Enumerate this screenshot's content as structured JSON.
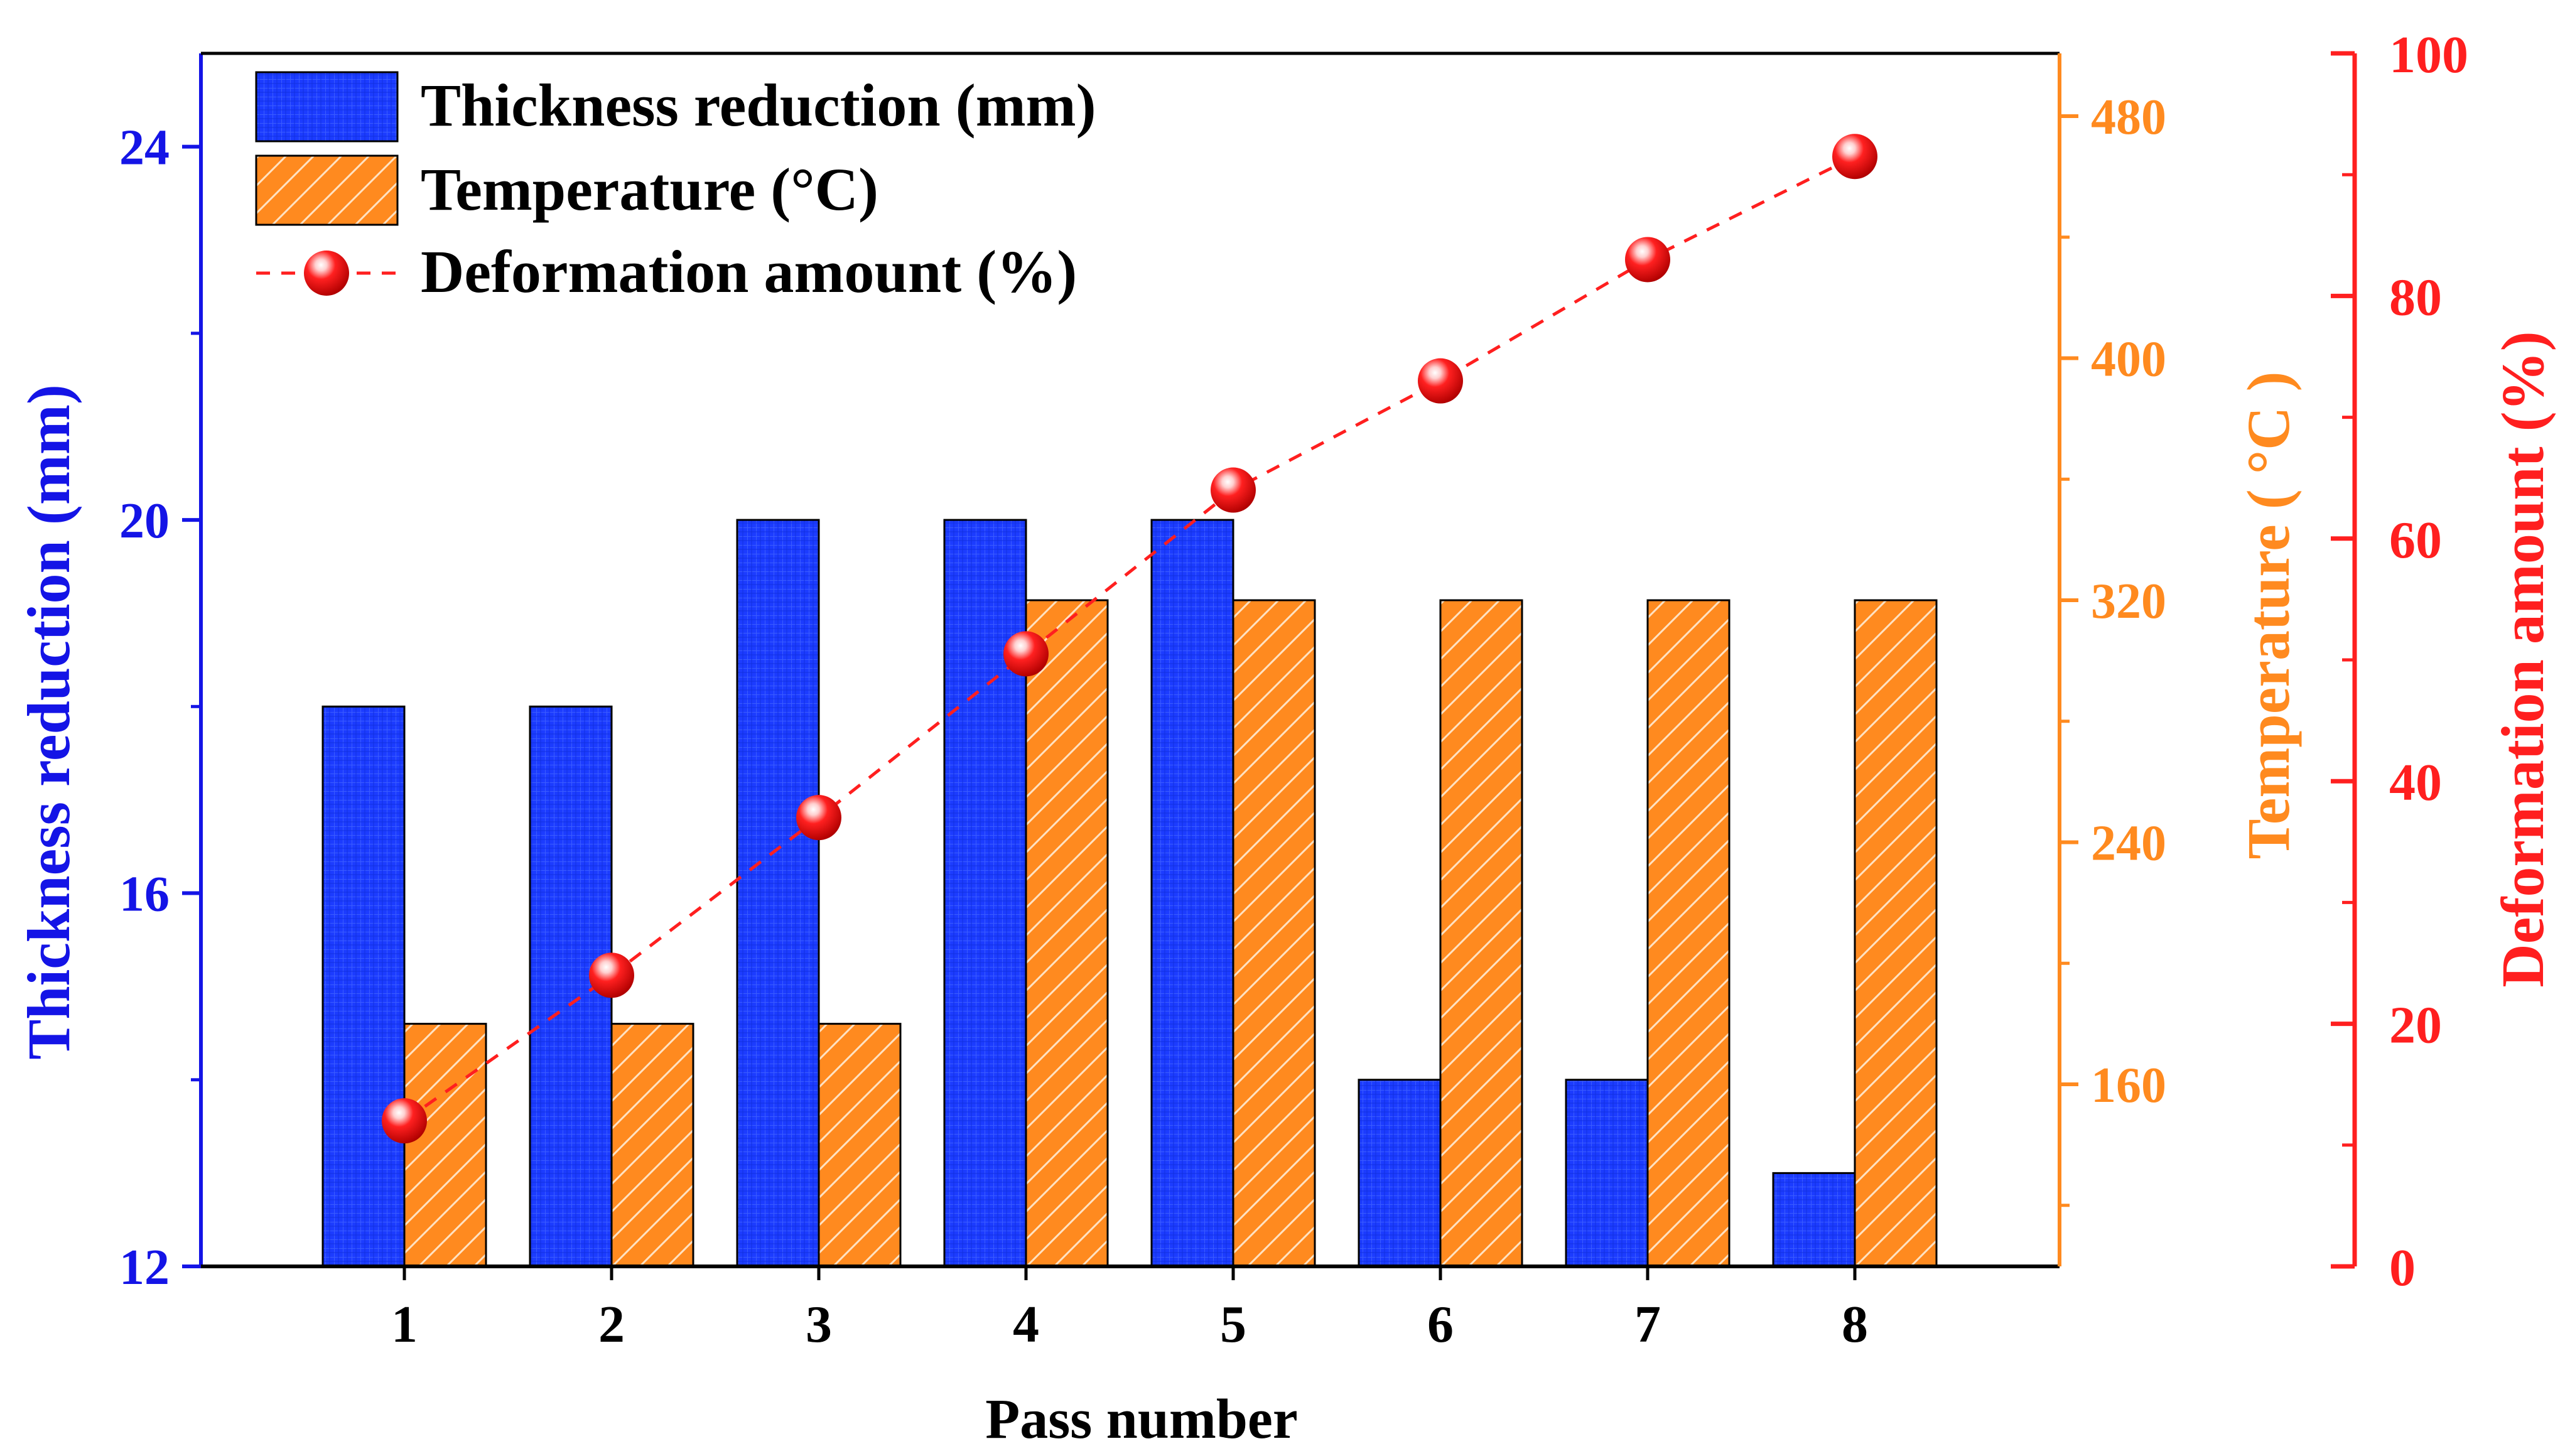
{
  "chart_data": {
    "type": "bar",
    "categories": [
      "1",
      "2",
      "3",
      "4",
      "5",
      "6",
      "7",
      "8"
    ],
    "xlabel": "Pass number",
    "series": [
      {
        "name": "Thickness reduction (mm)",
        "type": "bar",
        "axis": "left",
        "values": [
          18,
          18,
          20,
          20,
          20,
          14,
          14,
          13
        ],
        "color": "#1c3cff",
        "pattern": "grid"
      },
      {
        "name": "Temperature (°C)",
        "type": "bar",
        "axis": "right1",
        "values": [
          180,
          180,
          180,
          320,
          320,
          320,
          320,
          320
        ],
        "color": "#ff8a1f",
        "pattern": "hatch"
      },
      {
        "name": "Deformation amount (%)",
        "type": "line",
        "axis": "right2",
        "values": [
          12,
          24,
          37,
          50.5,
          64,
          73,
          83,
          91.5
        ],
        "color": "#ff1f1f",
        "line_style": "dashed",
        "marker": "sphere"
      }
    ],
    "axes": {
      "left": {
        "label": "Thickness reduction (mm)",
        "range": [
          12,
          25
        ],
        "ticks": [
          12,
          16,
          20,
          24
        ],
        "color": "#1414e6"
      },
      "right1": {
        "label": "Temperature ( °C )",
        "range": [
          80,
          480
        ],
        "range_note": "axis spans 80 (bottom) to ~500 (top)",
        "ticks": [
          160,
          240,
          320,
          400,
          480
        ],
        "color": "#ff8a1f"
      },
      "right2": {
        "label": "Deformation amount (%)",
        "range": [
          0,
          100
        ],
        "ticks": [
          0,
          20,
          40,
          60,
          80,
          100
        ],
        "color": "#ff1f1f"
      }
    },
    "legend_placement": "top-left"
  }
}
